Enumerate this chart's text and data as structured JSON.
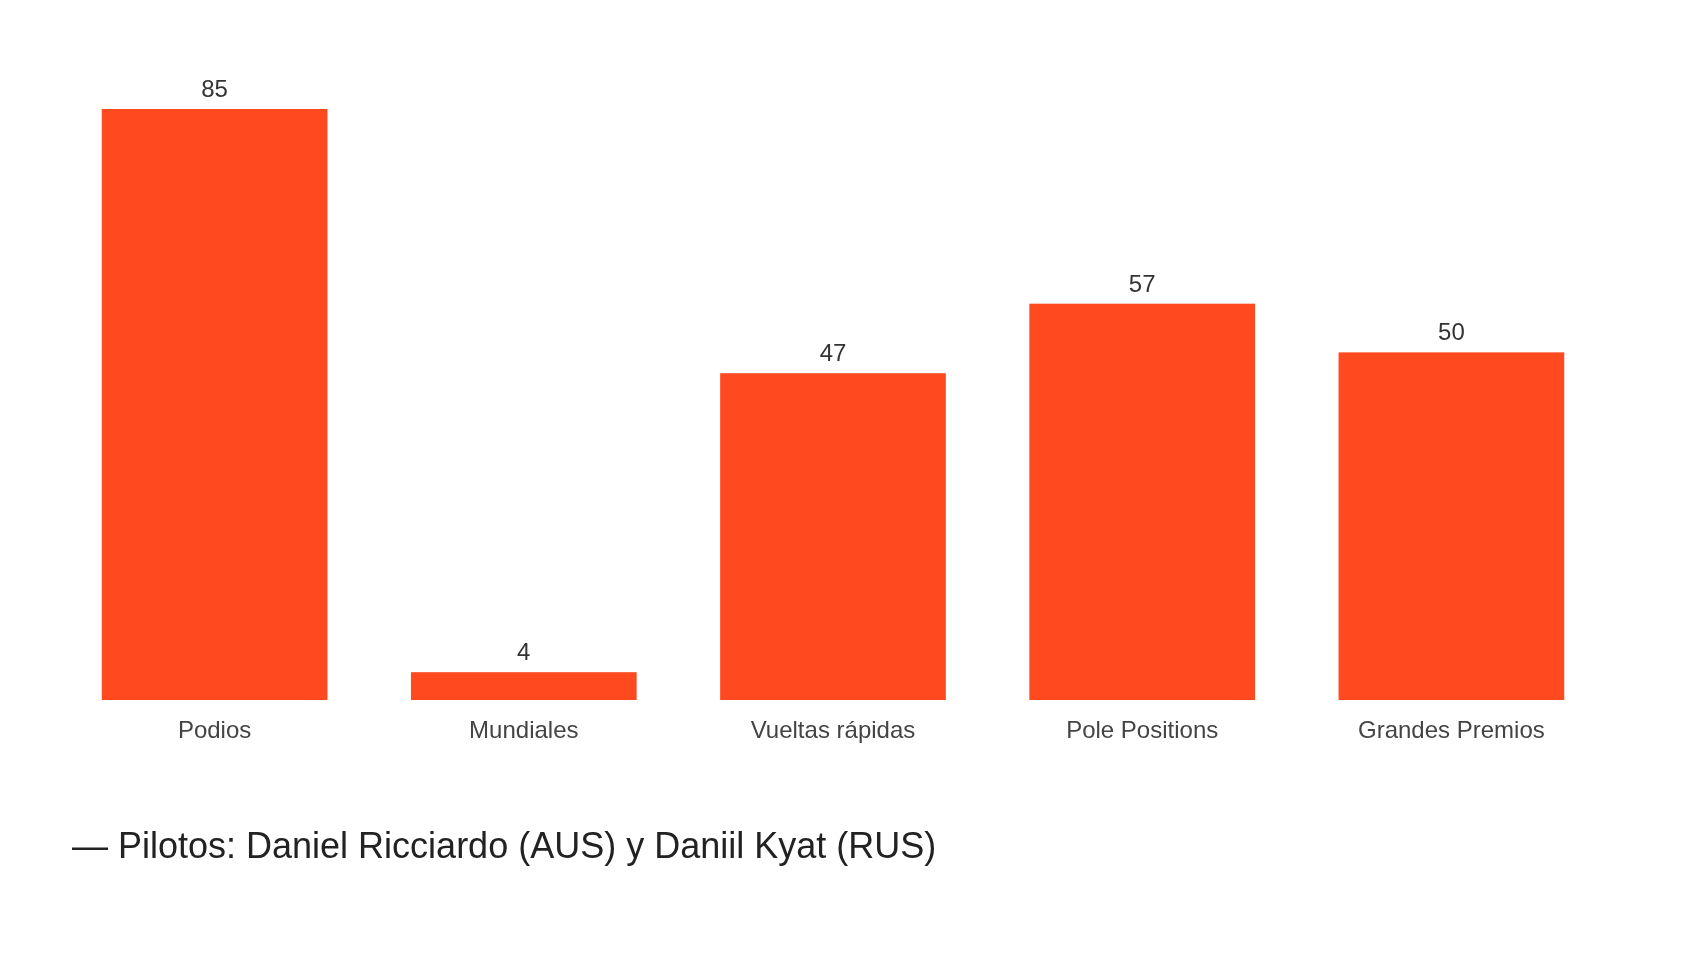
{
  "chart_data": {
    "type": "bar",
    "categories": [
      "Podios",
      "Mundiales",
      "Vueltas rápidas",
      "Pole Positions",
      "Grandes Premios"
    ],
    "values": [
      85,
      4,
      47,
      57,
      50
    ],
    "color": "#ff4a1f",
    "data_labels": true,
    "annotations": [
      "— Pilotos: Daniel Ricciardo (AUS) y Daniil Kyat (RUS)"
    ]
  }
}
